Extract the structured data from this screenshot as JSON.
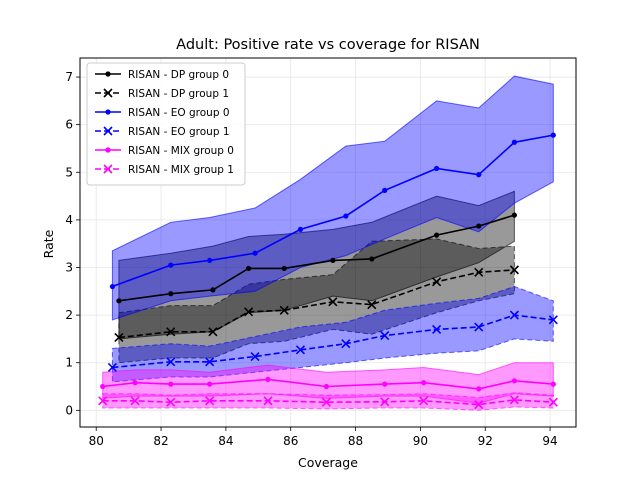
{
  "chart_data": {
    "type": "line",
    "title": "Adult: Positive rate vs coverage for RISAN",
    "xlabel": "Coverage",
    "ylabel": "Rate",
    "xlim": [
      79.5,
      94.8
    ],
    "ylim": [
      -0.35,
      7.4
    ],
    "xticks": [
      80,
      82,
      84,
      86,
      88,
      90,
      92,
      94
    ],
    "yticks": [
      0,
      1,
      2,
      3,
      4,
      5,
      6,
      7
    ],
    "grid": true,
    "legend_position": "top-left",
    "series": [
      {
        "name": "RISAN - DP group 0",
        "color": "#000000",
        "linestyle": "solid",
        "marker": "dot",
        "x": [
          80.7,
          82.3,
          83.6,
          84.7,
          85.8,
          87.3,
          88.5,
          90.5,
          91.8,
          92.9
        ],
        "y": [
          2.3,
          2.45,
          2.53,
          2.98,
          2.98,
          3.15,
          3.18,
          3.68,
          3.87,
          4.1
        ],
        "lower": [
          1.5,
          1.6,
          1.65,
          2.05,
          2.1,
          2.4,
          2.3,
          2.8,
          3.1,
          3.55
        ],
        "upper": [
          3.15,
          3.3,
          3.45,
          3.65,
          3.7,
          3.8,
          3.95,
          4.5,
          4.3,
          4.6
        ]
      },
      {
        "name": "RISAN - DP group 1",
        "color": "#000000",
        "linestyle": "dashed",
        "marker": "x",
        "x": [
          80.7,
          82.3,
          83.6,
          84.7,
          85.8,
          87.3,
          88.5,
          90.5,
          91.8,
          92.9
        ],
        "y": [
          1.53,
          1.65,
          1.65,
          2.07,
          2.1,
          2.28,
          2.22,
          2.7,
          2.9,
          2.95
        ],
        "lower": [
          1.0,
          1.1,
          1.1,
          1.4,
          1.45,
          1.7,
          1.6,
          2.05,
          2.3,
          2.45
        ],
        "upper": [
          2.05,
          2.2,
          2.2,
          2.65,
          2.75,
          2.85,
          3.55,
          3.6,
          3.4,
          3.45
        ]
      },
      {
        "name": "RISAN - EO group 0",
        "color": "#0000ff",
        "linestyle": "solid",
        "marker": "dot",
        "x": [
          80.5,
          82.3,
          83.5,
          84.9,
          86.3,
          87.7,
          88.9,
          90.5,
          91.8,
          92.9,
          94.1
        ],
        "y": [
          2.6,
          3.05,
          3.15,
          3.3,
          3.8,
          4.08,
          4.62,
          5.08,
          4.95,
          5.63,
          5.78
        ],
        "lower": [
          1.9,
          2.3,
          2.4,
          2.5,
          3.0,
          3.25,
          3.6,
          4.05,
          3.75,
          4.35,
          4.8
        ],
        "upper": [
          3.35,
          3.95,
          4.05,
          4.25,
          4.85,
          5.55,
          5.65,
          6.5,
          6.35,
          7.02,
          6.85
        ]
      },
      {
        "name": "RISAN - EO group 1",
        "color": "#0000ff",
        "linestyle": "dashed",
        "marker": "x",
        "x": [
          80.5,
          82.3,
          83.5,
          84.9,
          86.3,
          87.7,
          88.9,
          90.5,
          91.8,
          92.9,
          94.1
        ],
        "y": [
          0.9,
          1.02,
          1.02,
          1.13,
          1.27,
          1.4,
          1.57,
          1.7,
          1.75,
          2.0,
          1.9
        ],
        "lower": [
          0.6,
          0.7,
          0.7,
          0.8,
          0.9,
          1.0,
          1.1,
          1.2,
          1.25,
          1.5,
          1.45
        ],
        "upper": [
          1.3,
          1.4,
          1.35,
          1.55,
          1.75,
          1.85,
          2.1,
          2.25,
          2.35,
          2.6,
          2.3
        ]
      },
      {
        "name": "RISAN - MIX group 0",
        "color": "#ff00ff",
        "linestyle": "solid",
        "marker": "dot",
        "x": [
          80.2,
          81.2,
          82.3,
          83.5,
          85.3,
          87.1,
          88.9,
          90.1,
          91.8,
          92.9,
          94.1
        ],
        "y": [
          0.5,
          0.58,
          0.55,
          0.55,
          0.65,
          0.5,
          0.55,
          0.58,
          0.45,
          0.62,
          0.55
        ],
        "lower": [
          0.25,
          0.3,
          0.3,
          0.3,
          0.35,
          0.25,
          0.3,
          0.3,
          0.15,
          0.35,
          0.3
        ],
        "upper": [
          0.8,
          0.85,
          0.85,
          0.8,
          0.95,
          0.8,
          0.85,
          0.9,
          0.75,
          1.0,
          1.0
        ]
      },
      {
        "name": "RISAN - MIX group 1",
        "color": "#ff00ff",
        "linestyle": "dashed",
        "marker": "x",
        "x": [
          80.2,
          81.2,
          82.3,
          83.5,
          85.3,
          87.1,
          88.9,
          90.1,
          91.8,
          92.9,
          94.1
        ],
        "y": [
          0.2,
          0.2,
          0.17,
          0.2,
          0.2,
          0.17,
          0.18,
          0.2,
          0.12,
          0.22,
          0.17
        ],
        "lower": [
          0.05,
          0.05,
          0.05,
          0.05,
          0.05,
          0.03,
          0.05,
          0.05,
          0.0,
          0.07,
          0.05
        ],
        "upper": [
          0.35,
          0.35,
          0.32,
          0.35,
          0.35,
          0.32,
          0.33,
          0.35,
          0.27,
          0.37,
          0.32
        ]
      }
    ]
  }
}
